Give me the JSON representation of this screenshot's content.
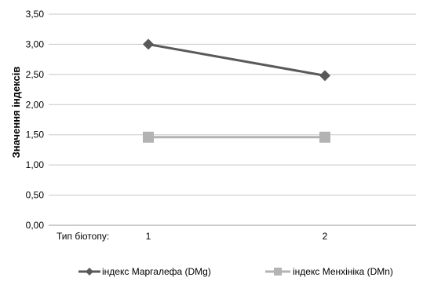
{
  "chart_data": {
    "type": "line",
    "ylabel": "Значення індексів",
    "xlabel_prefix": "Тип біотопу:",
    "categories": [
      "1",
      "2"
    ],
    "ylim": [
      0,
      3.5
    ],
    "yticks": [
      "0,00",
      "0,50",
      "1,00",
      "1,50",
      "2,00",
      "2,50",
      "3,00",
      "3,50"
    ],
    "ytick_values": [
      0,
      0.5,
      1.0,
      1.5,
      2.0,
      2.5,
      3.0,
      3.5
    ],
    "grid": true,
    "legend_position": "bottom",
    "series": [
      {
        "name": "індекс Маргалефа (DMg)",
        "values": [
          3.0,
          2.48
        ],
        "color": "#595959",
        "marker": "diamond"
      },
      {
        "name": "індекс Менхініка (DMn)",
        "values": [
          1.46,
          1.46
        ],
        "color": "#b3b3b3",
        "marker": "square"
      }
    ]
  }
}
